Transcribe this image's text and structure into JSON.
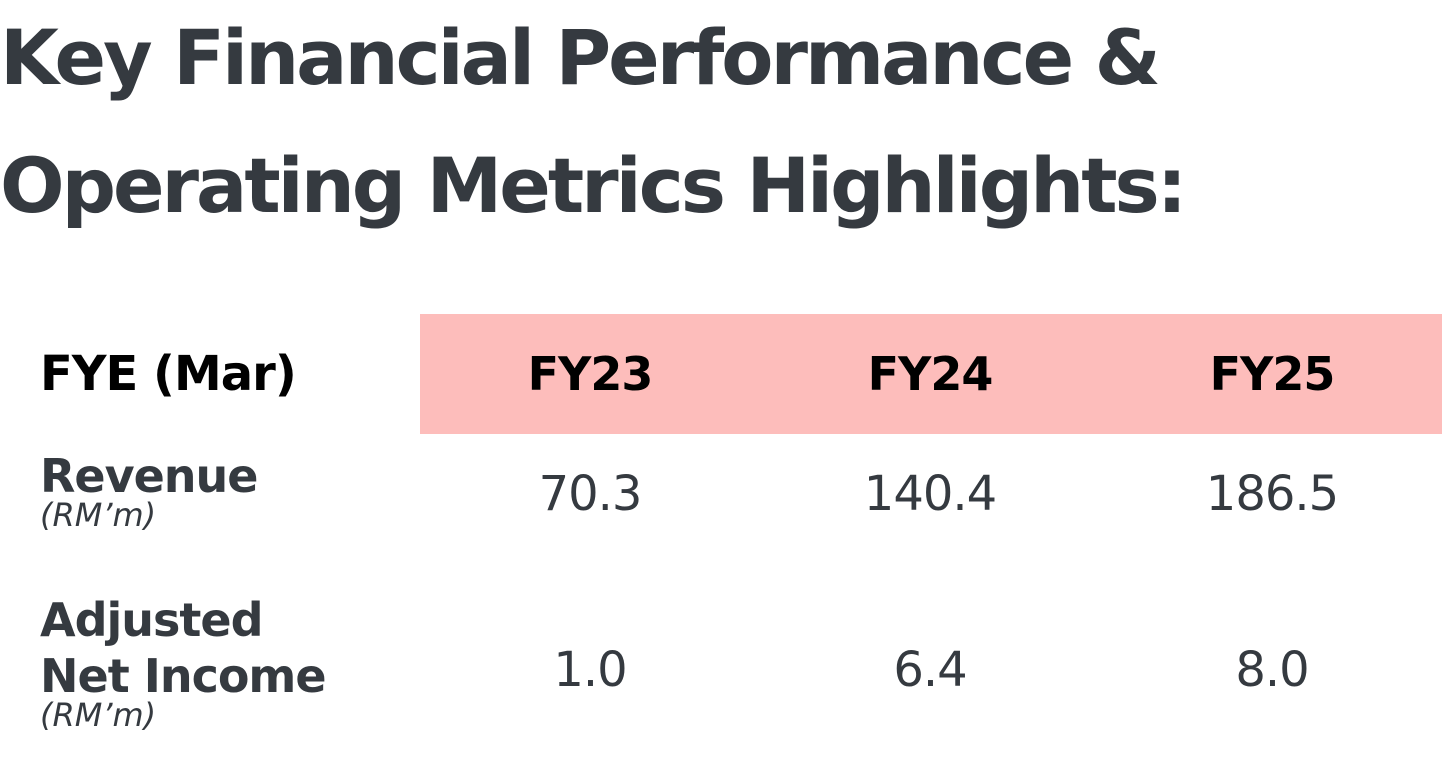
{
  "title": {
    "line1": "Key Financial Performance &",
    "line2": "Operating Metrics Highlights:"
  },
  "table": {
    "header_label": "FYE (Mar)",
    "columns": [
      "FY23",
      "FY24",
      "FY25"
    ],
    "rows": [
      {
        "label_lines": [
          "Revenue"
        ],
        "unit": "(RM’m)",
        "values": [
          "70.3",
          "140.4",
          "186.5"
        ]
      },
      {
        "label_lines": [
          "Adjusted",
          "Net Income"
        ],
        "unit": "(RM’m)",
        "values": [
          "1.0",
          "6.4",
          "8.0"
        ]
      }
    ]
  },
  "colors": {
    "header_band": "#fdbdbb",
    "text_dark": "#353a40",
    "header_text": "#000000"
  }
}
